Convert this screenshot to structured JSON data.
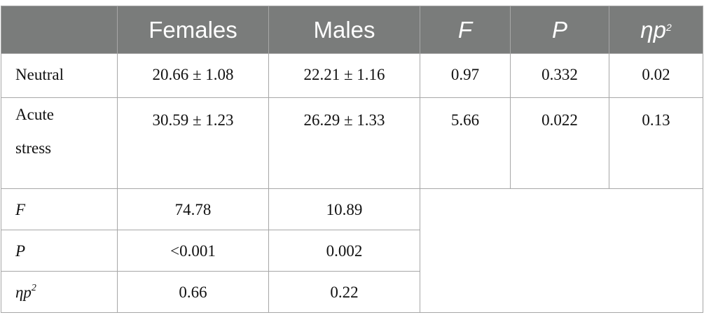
{
  "table": {
    "headers": [
      "",
      "Females",
      "Males",
      "F",
      "P",
      "ηp",
      "2"
    ],
    "rows": [
      {
        "label": "Neutral",
        "females": "20.66 ± 1.08",
        "males": "22.21 ± 1.16",
        "f": "0.97",
        "p": "0.332",
        "etap2": "0.02"
      },
      {
        "label_line1": "Acute",
        "label_line2": "stress",
        "females": "30.59 ± 1.23",
        "males": "26.29 ± 1.33",
        "f": "5.66",
        "p": "0.022",
        "etap2": "0.13"
      }
    ],
    "stats": [
      {
        "label": "F",
        "females": "74.78",
        "males": "10.89"
      },
      {
        "label": "P",
        "females": "<0.001",
        "males": "0.002"
      },
      {
        "label": "ηp",
        "sup": "2",
        "females": "0.66",
        "males": "0.22"
      }
    ]
  }
}
